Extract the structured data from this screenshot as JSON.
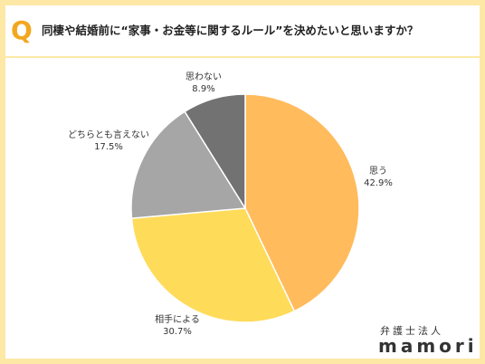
{
  "header": {
    "badge": "Q",
    "question": "同棲や結婚前に“家事・お金等に関するルール”を決めたいと思いますか？"
  },
  "chart_data": {
    "type": "pie",
    "start_angle": "12 o'clock, clockwise",
    "slices": [
      {
        "label": "思う",
        "value": 42.9,
        "value_label": "42.9%",
        "color": "#ffbb5c"
      },
      {
        "label": "相手による",
        "value": 30.7,
        "value_label": "30.7%",
        "color": "#ffdb5a"
      },
      {
        "label": "どちらとも言えない",
        "value": 17.5,
        "value_label": "17.5%",
        "color": "#a6a6a6"
      },
      {
        "label": "思わない",
        "value": 8.9,
        "value_label": "8.9%",
        "color": "#727272"
      }
    ]
  },
  "brand": {
    "sub": "弁護士法人",
    "name": "mamori"
  },
  "colors": {
    "frame": "#fde8a6",
    "badge": "#f3a71f"
  }
}
